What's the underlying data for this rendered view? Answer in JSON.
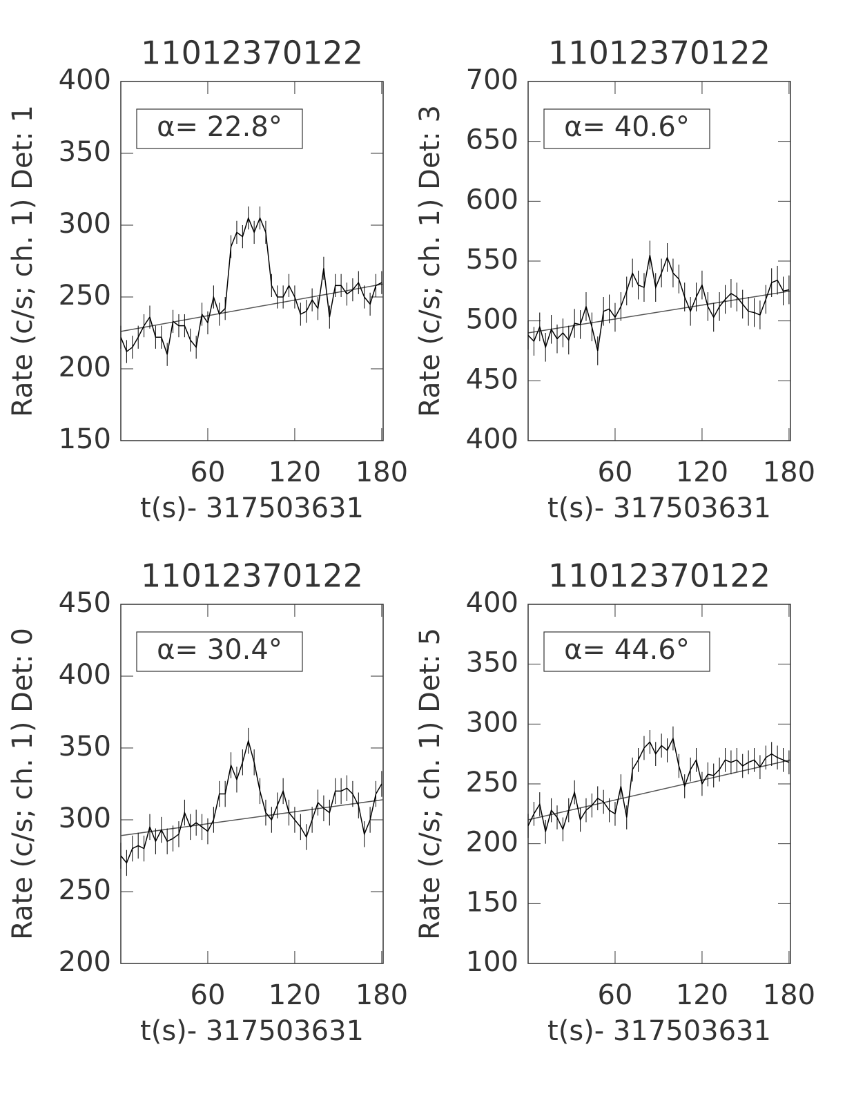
{
  "chart_data": [
    {
      "type": "line",
      "title": "11012370122",
      "xlabel": "t(s)- 317503631",
      "ylabel": "Rate (c/s; ch. 1) Det: 1",
      "annotation": "α= 22.8°",
      "color": "#000000",
      "fit_color": "#555555",
      "x": [
        0,
        4,
        8,
        12,
        16,
        20,
        24,
        28,
        32,
        36,
        40,
        44,
        48,
        52,
        56,
        60,
        64,
        68,
        72,
        76,
        80,
        84,
        88,
        92,
        96,
        100,
        104,
        108,
        112,
        116,
        120,
        124,
        128,
        132,
        136,
        140,
        144,
        148,
        152,
        156,
        160,
        164,
        168,
        172,
        176,
        180
      ],
      "values": [
        222,
        212,
        215,
        222,
        230,
        236,
        222,
        222,
        210,
        233,
        230,
        230,
        220,
        215,
        238,
        232,
        250,
        238,
        242,
        285,
        295,
        292,
        305,
        295,
        305,
        295,
        258,
        250,
        250,
        258,
        250,
        238,
        240,
        248,
        242,
        270,
        236,
        258,
        258,
        252,
        255,
        260,
        250,
        245,
        258,
        260
      ],
      "errors": [
        8,
        8,
        8,
        8,
        8,
        8,
        8,
        8,
        8,
        8,
        8,
        8,
        8,
        8,
        8,
        8,
        8,
        8,
        8,
        8,
        8,
        8,
        8,
        8,
        8,
        8,
        8,
        8,
        8,
        8,
        8,
        8,
        8,
        8,
        8,
        8,
        8,
        8,
        8,
        8,
        8,
        8,
        8,
        8,
        8,
        8
      ],
      "fit": {
        "x": [
          0,
          181
        ],
        "values": [
          226,
          259
        ]
      },
      "xlim": [
        0,
        181
      ],
      "xticks": [
        60,
        120,
        180
      ],
      "ylim": [
        150,
        400
      ],
      "yticks": [
        150,
        200,
        250,
        300,
        350,
        400
      ]
    },
    {
      "type": "line",
      "title": "11012370122",
      "xlabel": "t(s)- 317503631",
      "ylabel": "Rate (c/s; ch. 1) Det: 3",
      "annotation": "α= 40.6°",
      "color": "#000000",
      "fit_color": "#555555",
      "x": [
        0,
        4,
        8,
        12,
        16,
        20,
        24,
        28,
        32,
        36,
        40,
        44,
        48,
        52,
        56,
        60,
        64,
        68,
        72,
        76,
        80,
        84,
        88,
        92,
        96,
        100,
        104,
        108,
        112,
        116,
        120,
        124,
        128,
        132,
        136,
        140,
        144,
        148,
        152,
        156,
        160,
        164,
        168,
        172,
        176,
        180
      ],
      "values": [
        488,
        483,
        495,
        478,
        493,
        485,
        490,
        484,
        498,
        497,
        512,
        495,
        475,
        508,
        510,
        503,
        512,
        525,
        540,
        530,
        528,
        555,
        528,
        540,
        553,
        540,
        535,
        520,
        508,
        520,
        530,
        512,
        503,
        512,
        518,
        523,
        520,
        514,
        508,
        507,
        505,
        518,
        532,
        534,
        525,
        526
      ],
      "errors": [
        12,
        12,
        12,
        12,
        12,
        12,
        12,
        12,
        12,
        12,
        12,
        12,
        12,
        12,
        12,
        12,
        12,
        12,
        12,
        12,
        12,
        12,
        12,
        12,
        12,
        12,
        12,
        12,
        12,
        12,
        12,
        12,
        12,
        12,
        12,
        12,
        12,
        12,
        12,
        12,
        12,
        12,
        12,
        12,
        12,
        12
      ],
      "fit": {
        "x": [
          0,
          181
        ],
        "values": [
          490,
          525
        ]
      },
      "xlim": [
        0,
        181
      ],
      "xticks": [
        60,
        120,
        180
      ],
      "ylim": [
        400,
        700
      ],
      "yticks": [
        400,
        450,
        500,
        550,
        600,
        650,
        700
      ]
    },
    {
      "type": "line",
      "title": "11012370122",
      "xlabel": "t(s)- 317503631",
      "ylabel": "Rate (c/s; ch. 1) Det: 0",
      "annotation": "α= 30.4°",
      "color": "#000000",
      "fit_color": "#555555",
      "x": [
        0,
        4,
        8,
        12,
        16,
        20,
        24,
        28,
        32,
        36,
        40,
        44,
        48,
        52,
        56,
        60,
        64,
        68,
        72,
        76,
        80,
        84,
        88,
        92,
        96,
        100,
        104,
        108,
        112,
        116,
        120,
        124,
        128,
        132,
        136,
        140,
        144,
        148,
        152,
        156,
        160,
        164,
        168,
        172,
        176,
        180
      ],
      "values": [
        275,
        270,
        280,
        282,
        280,
        295,
        285,
        293,
        285,
        287,
        290,
        305,
        295,
        298,
        295,
        292,
        300,
        318,
        318,
        338,
        328,
        340,
        355,
        340,
        320,
        305,
        300,
        310,
        320,
        305,
        300,
        295,
        288,
        300,
        312,
        308,
        305,
        320,
        320,
        322,
        318,
        310,
        290,
        300,
        318,
        325
      ],
      "errors": [
        9,
        9,
        9,
        9,
        9,
        9,
        9,
        9,
        9,
        9,
        9,
        9,
        9,
        9,
        9,
        9,
        9,
        9,
        9,
        9,
        9,
        9,
        9,
        9,
        9,
        9,
        9,
        9,
        9,
        9,
        9,
        9,
        9,
        9,
        9,
        9,
        9,
        9,
        9,
        9,
        9,
        9,
        9,
        9,
        9,
        9
      ],
      "fit": {
        "x": [
          0,
          181
        ],
        "values": [
          289,
          314
        ]
      },
      "xlim": [
        0,
        181
      ],
      "xticks": [
        60,
        120,
        180
      ],
      "ylim": [
        200,
        450
      ],
      "yticks": [
        200,
        250,
        300,
        350,
        400,
        450
      ]
    },
    {
      "type": "line",
      "title": "11012370122",
      "xlabel": "t(s)- 317503631",
      "ylabel": "Rate (c/s; ch. 1) Det: 5",
      "annotation": "α= 44.6°",
      "color": "#000000",
      "fit_color": "#555555",
      "x": [
        0,
        4,
        8,
        12,
        16,
        20,
        24,
        28,
        32,
        36,
        40,
        44,
        48,
        52,
        56,
        60,
        64,
        68,
        72,
        76,
        80,
        84,
        88,
        92,
        96,
        100,
        104,
        108,
        112,
        116,
        120,
        124,
        128,
        132,
        136,
        140,
        144,
        148,
        152,
        156,
        160,
        164,
        168,
        172,
        176,
        180
      ],
      "values": [
        215,
        225,
        233,
        210,
        228,
        222,
        212,
        228,
        243,
        220,
        228,
        232,
        238,
        235,
        228,
        225,
        248,
        222,
        262,
        270,
        280,
        285,
        275,
        282,
        278,
        288,
        265,
        248,
        262,
        270,
        250,
        258,
        257,
        262,
        270,
        268,
        270,
        265,
        268,
        270,
        264,
        272,
        275,
        272,
        270,
        268
      ],
      "errors": [
        10,
        10,
        10,
        10,
        10,
        10,
        10,
        10,
        10,
        10,
        10,
        10,
        10,
        10,
        10,
        10,
        10,
        10,
        10,
        10,
        10,
        10,
        10,
        10,
        10,
        10,
        10,
        10,
        10,
        10,
        10,
        10,
        10,
        10,
        10,
        10,
        10,
        10,
        10,
        10,
        10,
        10,
        10,
        10,
        10,
        10
      ],
      "fit": {
        "x": [
          0,
          181
        ],
        "values": [
          220,
          270
        ]
      },
      "xlim": [
        0,
        181
      ],
      "xticks": [
        60,
        120,
        180
      ],
      "ylim": [
        100,
        400
      ],
      "yticks": [
        100,
        150,
        200,
        250,
        300,
        350,
        400
      ]
    }
  ]
}
